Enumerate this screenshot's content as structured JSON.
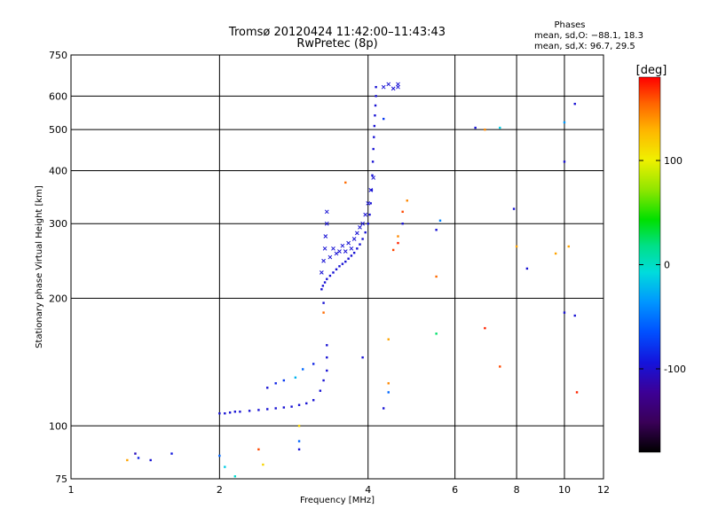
{
  "chart_data": {
    "type": "scatter",
    "title": "Tromsø 20120424 11:42:00–11:43:43",
    "subtitle": "RwPretec (8p)",
    "xlabel": "Frequency [MHz]",
    "ylabel": "Stationary phase Virtual Height [km]",
    "x_scale": "log",
    "y_scale": "log",
    "xlim": [
      1,
      12
    ],
    "ylim": [
      75,
      750
    ],
    "x_ticks": [
      1,
      2,
      4,
      6,
      8,
      10,
      12
    ],
    "x_tick_labels": [
      "1",
      "2",
      "4",
      "6",
      "8",
      "10",
      "12"
    ],
    "y_ticks": [
      75,
      100,
      200,
      300,
      400,
      500,
      600,
      750
    ],
    "y_tick_labels": [
      "75",
      "100",
      "200",
      "300",
      "400",
      "500",
      "600",
      "750"
    ],
    "grid": true,
    "stats": {
      "heading": "Phases",
      "line_o": "mean, sd,O: −88.1, 18.3",
      "line_x": "mean, sd,X:  96.7, 29.5"
    },
    "colorbar": {
      "label": "[deg]",
      "range": [
        -180,
        180
      ],
      "tick_values": [
        100,
        0,
        -100
      ],
      "tick_labels": [
        "100",
        "0",
        "-100"
      ]
    },
    "colormap": [
      "#000000",
      "#3a0058",
      "#3c0096",
      "#1414dc",
      "#0050ff",
      "#0096ff",
      "#00dcdc",
      "#00e088",
      "#00e000",
      "#90e600",
      "#f0f000",
      "#ffb400",
      "#ff6400",
      "#ff0000"
    ],
    "series_o_trace": {
      "symbol": "dot",
      "phase_deg": -100,
      "points": [
        [
          2.0,
          107
        ],
        [
          2.05,
          107
        ],
        [
          2.1,
          107.5
        ],
        [
          2.15,
          108
        ],
        [
          2.2,
          108
        ],
        [
          2.3,
          108.5
        ],
        [
          2.4,
          109
        ],
        [
          2.5,
          109.5
        ],
        [
          2.6,
          110
        ],
        [
          2.7,
          110.5
        ],
        [
          2.8,
          111
        ],
        [
          2.9,
          112
        ],
        [
          3.0,
          113
        ],
        [
          3.1,
          115
        ],
        [
          3.2,
          121
        ],
        [
          3.25,
          128
        ],
        [
          3.3,
          135
        ],
        [
          3.22,
          210
        ],
        [
          3.24,
          214
        ],
        [
          3.27,
          218
        ],
        [
          3.3,
          222
        ],
        [
          3.35,
          226
        ],
        [
          3.4,
          230
        ],
        [
          3.45,
          234
        ],
        [
          3.5,
          238
        ],
        [
          3.55,
          241
        ],
        [
          3.6,
          244
        ],
        [
          3.65,
          248
        ],
        [
          3.7,
          252
        ],
        [
          3.75,
          256
        ],
        [
          3.8,
          262
        ],
        [
          3.85,
          268
        ],
        [
          3.9,
          276
        ],
        [
          3.95,
          286
        ],
        [
          4.0,
          300
        ],
        [
          4.03,
          315
        ],
        [
          4.05,
          335
        ],
        [
          4.07,
          360
        ],
        [
          4.08,
          390
        ],
        [
          4.09,
          420
        ],
        [
          4.1,
          450
        ],
        [
          4.11,
          480
        ],
        [
          4.12,
          510
        ],
        [
          4.13,
          540
        ],
        [
          4.14,
          570
        ],
        [
          4.15,
          600
        ],
        [
          4.15,
          630
        ]
      ]
    },
    "series_x_trace": {
      "symbol": "cross",
      "phase_deg": -100,
      "points": [
        [
          3.22,
          230
        ],
        [
          3.25,
          245
        ],
        [
          3.27,
          262
        ],
        [
          3.28,
          280
        ],
        [
          3.3,
          300
        ],
        [
          3.3,
          320
        ],
        [
          3.35,
          250
        ],
        [
          3.4,
          262
        ],
        [
          3.45,
          255
        ],
        [
          3.5,
          258
        ],
        [
          3.55,
          266
        ],
        [
          3.6,
          258
        ],
        [
          3.65,
          270
        ],
        [
          3.7,
          262
        ],
        [
          3.75,
          276
        ],
        [
          3.8,
          285
        ],
        [
          3.85,
          294
        ],
        [
          3.9,
          300
        ],
        [
          3.95,
          315
        ],
        [
          4.0,
          335
        ],
        [
          4.05,
          360
        ],
        [
          4.1,
          385
        ],
        [
          4.3,
          630
        ],
        [
          4.4,
          640
        ],
        [
          4.5,
          625
        ],
        [
          4.6,
          630
        ],
        [
          4.6,
          640
        ]
      ]
    },
    "scattered_points": [
      [
        1.35,
        86,
        -110
      ],
      [
        1.37,
        84,
        -90
      ],
      [
        1.45,
        83,
        -100
      ],
      [
        1.6,
        86,
        -95
      ],
      [
        1.3,
        83,
        130
      ],
      [
        2.0,
        85,
        -60
      ],
      [
        2.05,
        80,
        -20
      ],
      [
        2.15,
        76,
        -10
      ],
      [
        2.4,
        88,
        160
      ],
      [
        2.45,
        81,
        110
      ],
      [
        2.9,
        100,
        110
      ],
      [
        2.9,
        88,
        -100
      ],
      [
        2.9,
        92,
        -60
      ],
      [
        2.5,
        123,
        -100
      ],
      [
        2.6,
        126,
        -90
      ],
      [
        2.7,
        128,
        -80
      ],
      [
        2.85,
        130,
        -30
      ],
      [
        2.95,
        136,
        -60
      ],
      [
        3.1,
        140,
        -90
      ],
      [
        3.3,
        145,
        -100
      ],
      [
        3.3,
        155,
        -100
      ],
      [
        3.25,
        195,
        -100
      ],
      [
        3.25,
        185,
        150
      ],
      [
        3.6,
        375,
        150
      ],
      [
        3.9,
        145,
        -100
      ],
      [
        4.3,
        110,
        -100
      ],
      [
        4.4,
        126,
        140
      ],
      [
        4.4,
        120,
        -60
      ],
      [
        4.4,
        160,
        130
      ],
      [
        4.5,
        260,
        160
      ],
      [
        4.6,
        280,
        140
      ],
      [
        4.6,
        270,
        170
      ],
      [
        4.7,
        320,
        160
      ],
      [
        4.7,
        300,
        -100
      ],
      [
        4.8,
        340,
        140
      ],
      [
        4.3,
        530,
        -80
      ],
      [
        5.6,
        305,
        -50
      ],
      [
        5.5,
        290,
        -100
      ],
      [
        5.5,
        225,
        150
      ],
      [
        5.5,
        165,
        20
      ],
      [
        6.6,
        505,
        -100
      ],
      [
        6.9,
        500,
        140
      ],
      [
        7.4,
        505,
        -20
      ],
      [
        6.9,
        170,
        170
      ],
      [
        7.4,
        138,
        160
      ],
      [
        7.9,
        325,
        -100
      ],
      [
        8.0,
        265,
        130
      ],
      [
        8.4,
        235,
        -100
      ],
      [
        9.6,
        255,
        130
      ],
      [
        10.0,
        520,
        -40
      ],
      [
        10.0,
        420,
        -100
      ],
      [
        10.0,
        185,
        -100
      ],
      [
        10.2,
        265,
        130
      ],
      [
        10.5,
        575,
        -100
      ],
      [
        10.5,
        182,
        -100
      ],
      [
        10.6,
        120,
        170
      ]
    ]
  }
}
